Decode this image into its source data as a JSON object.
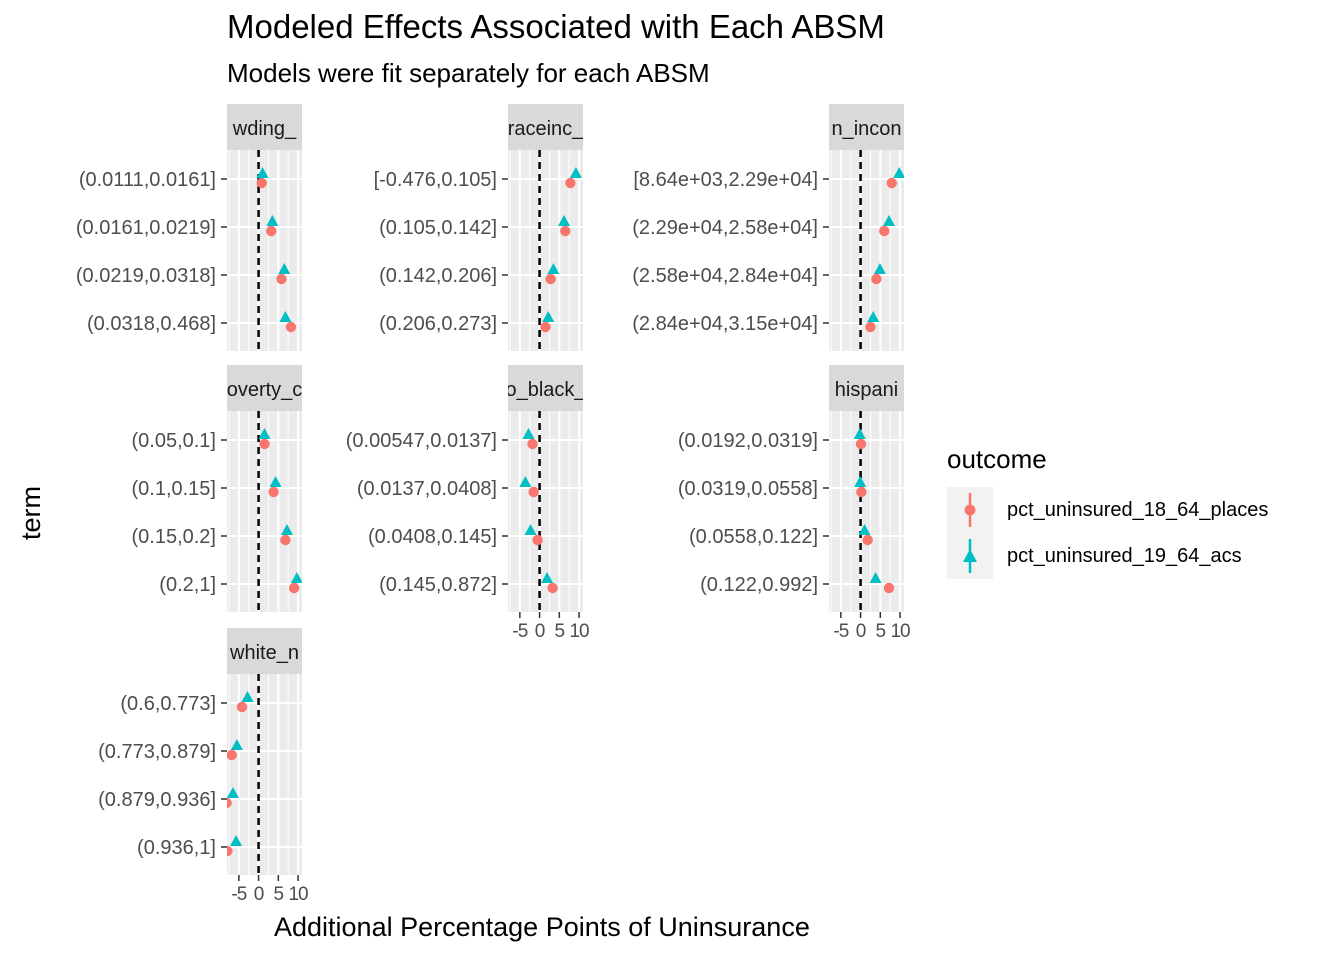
{
  "chart_data": {
    "type": "scatter",
    "title": "Modeled Effects Associated with Each ABSM",
    "subtitle": "Models were fit separately for each ABSM",
    "xlabel": "Additional Percentage Points of Uninsurance",
    "ylabel": "term",
    "xlim": [
      -8,
      11
    ],
    "x_ticks": [
      -5,
      0,
      5,
      10
    ],
    "x_tick_labels": [
      "-5",
      "0",
      "5",
      "10"
    ],
    "reference_line_x": 0,
    "legend": {
      "title": "outcome",
      "entries": [
        "pct_uninsured_18_64_places",
        "pct_uninsured_19_64_acs"
      ],
      "colors": [
        "#F8766D",
        "#00BFC4"
      ],
      "shapes": [
        "circle",
        "triangle"
      ]
    },
    "panels": [
      {
        "strip": "wding_",
        "terms": [
          "(0.0111,0.0161]",
          "(0.0161,0.0219]",
          "(0.0219,0.0318]",
          "(0.0318,0.468]"
        ],
        "places": [
          0.8,
          3.2,
          5.8,
          8.2
        ],
        "acs": [
          1.0,
          3.5,
          6.5,
          6.8
        ]
      },
      {
        "strip": "raceinc_",
        "terms": [
          "[-0.476,0.105]",
          "(0.105,0.142]",
          "(0.142,0.206]",
          "(0.206,0.273]"
        ],
        "places": [
          7.8,
          6.5,
          2.8,
          1.5
        ],
        "acs": [
          9.2,
          6.2,
          3.5,
          2.2
        ]
      },
      {
        "strip": "n_incon",
        "terms": [
          "[8.64e+03,2.29e+04]",
          "(2.29e+04,2.58e+04]",
          "(2.58e+04,2.84e+04]",
          "(2.84e+04,3.15e+04]"
        ],
        "places": [
          7.9,
          6.0,
          4.0,
          2.5
        ],
        "acs": [
          9.8,
          7.2,
          4.9,
          3.2
        ]
      },
      {
        "strip": "overty_c",
        "terms": [
          "(0.05,0.1]",
          "(0.1,0.15]",
          "(0.15,0.2]",
          "(0.2,1]"
        ],
        "places": [
          1.5,
          3.8,
          6.8,
          9.0
        ],
        "acs": [
          1.5,
          4.3,
          7.2,
          9.7
        ]
      },
      {
        "strip": "o_black_",
        "terms": [
          "(0.00547,0.0137]",
          "(0.0137,0.0408]",
          "(0.0408,0.145]",
          "(0.145,0.872]"
        ],
        "places": [
          -1.8,
          -1.5,
          -0.5,
          3.3
        ],
        "acs": [
          -2.8,
          -3.6,
          -2.3,
          1.9
        ]
      },
      {
        "strip": "hispani",
        "terms": [
          "(0.0192,0.0319]",
          "(0.0319,0.0558]",
          "(0.0558,0.122]",
          "(0.122,0.992]"
        ],
        "places": [
          0.1,
          0.2,
          1.8,
          7.2
        ],
        "acs": [
          -0.2,
          -0.1,
          1.0,
          3.8
        ]
      },
      {
        "strip": "white_n",
        "terms": [
          "(0.6,0.773]",
          "(0.773,0.879]",
          "(0.879,0.936]",
          "(0.936,1]"
        ],
        "places": [
          -4.2,
          -6.8,
          -8.1,
          -7.9
        ],
        "acs": [
          -2.8,
          -5.5,
          -6.5,
          -5.7
        ]
      }
    ]
  }
}
